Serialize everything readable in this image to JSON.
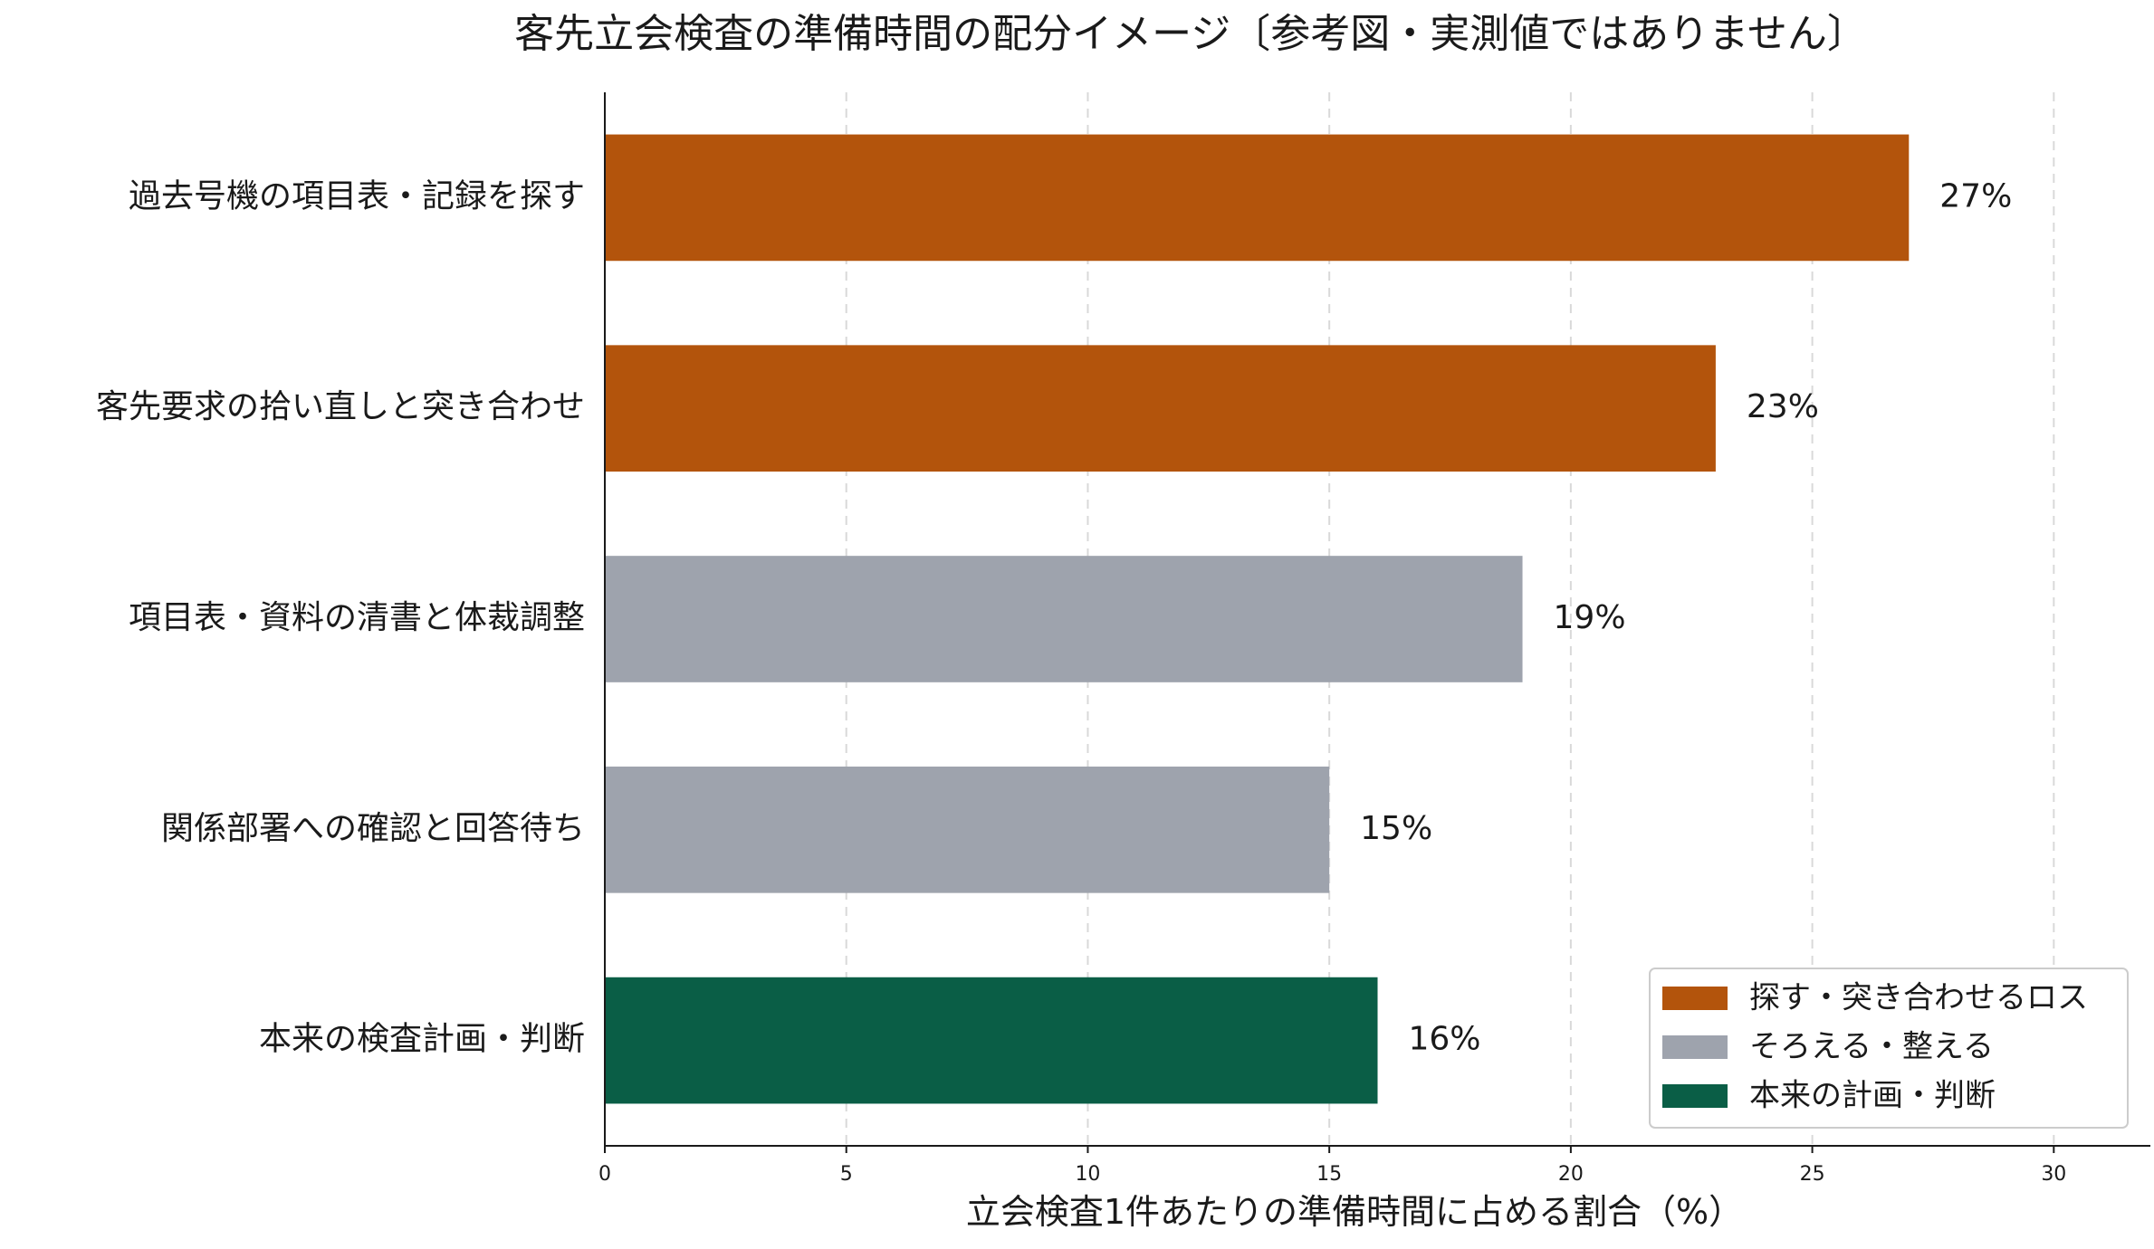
{
  "chart_data": {
    "type": "bar",
    "orientation": "horizontal",
    "title": "客先立会検査の準備時間の配分イメージ〔参考図・実測値ではありません〕",
    "xlabel": "立会検査1件あたりの準備時間に占める割合（%）",
    "ylabel": "",
    "xlim": [
      0,
      32
    ],
    "xticks": [
      0,
      5,
      10,
      15,
      20,
      25,
      30
    ],
    "grid": "x-dashed",
    "legend_position": "bottom-right",
    "categories": [
      "過去号機の項目表・記録を探す",
      "客先要求の拾い直しと突き合わせ",
      "項目表・資料の清書と体裁調整",
      "関係部署への確認と回答待ち",
      "本来の検査計画・判断"
    ],
    "values": [
      27,
      23,
      19,
      15,
      16
    ],
    "value_labels": [
      "27%",
      "23%",
      "19%",
      "15%",
      "16%"
    ],
    "groups": [
      "loss",
      "loss",
      "arrange",
      "arrange",
      "core"
    ],
    "legend": [
      {
        "key": "loss",
        "label": "探す・突き合わせるロス",
        "color": "#b3540c"
      },
      {
        "key": "arrange",
        "label": "そろえる・整える",
        "color": "#9ea3ad"
      },
      {
        "key": "core",
        "label": "本来の計画・判断",
        "color": "#0a5e46"
      }
    ]
  }
}
